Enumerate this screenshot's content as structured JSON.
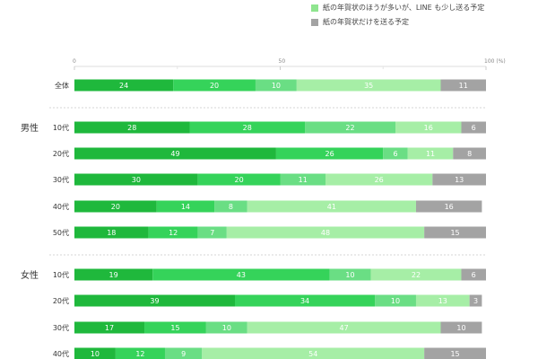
{
  "legend": [
    {
      "label": "紙の年賀状のほうが多いが、LINE も少し送る予定",
      "color": "#8fe58f"
    },
    {
      "label": "紙の年賀状だけを送る予定",
      "color": "#a3a3a3"
    }
  ],
  "chart_data": {
    "type": "bar",
    "orientation": "horizontal",
    "stacked": true,
    "xlim": [
      0,
      100
    ],
    "xticks": [
      "0",
      "50",
      "100 (%)"
    ],
    "series_colors": [
      "#1fb83c",
      "#35d35a",
      "#6ade84",
      "#a6eea6",
      "#a3a3a3"
    ],
    "legend_series": [
      3,
      4
    ],
    "rows": [
      {
        "group": "",
        "label": "全体",
        "values": [
          24,
          20,
          10,
          35,
          11
        ]
      },
      {
        "group": "男性",
        "label": "10代",
        "values": [
          28,
          28,
          22,
          16,
          6
        ]
      },
      {
        "group": "",
        "label": "20代",
        "values": [
          49,
          26,
          6,
          11,
          8
        ]
      },
      {
        "group": "",
        "label": "30代",
        "values": [
          30,
          20,
          11,
          26,
          13
        ]
      },
      {
        "group": "",
        "label": "40代",
        "values": [
          20,
          14,
          8,
          41,
          16
        ]
      },
      {
        "group": "",
        "label": "50代",
        "values": [
          18,
          12,
          7,
          48,
          15
        ]
      },
      {
        "group": "女性",
        "label": "10代",
        "values": [
          19,
          43,
          10,
          22,
          6
        ]
      },
      {
        "group": "",
        "label": "20代",
        "values": [
          39,
          34,
          10,
          13,
          3
        ]
      },
      {
        "group": "",
        "label": "30代",
        "values": [
          17,
          15,
          10,
          47,
          10
        ]
      },
      {
        "group": "",
        "label": "40代",
        "values": [
          10,
          12,
          9,
          54,
          15
        ]
      }
    ]
  }
}
